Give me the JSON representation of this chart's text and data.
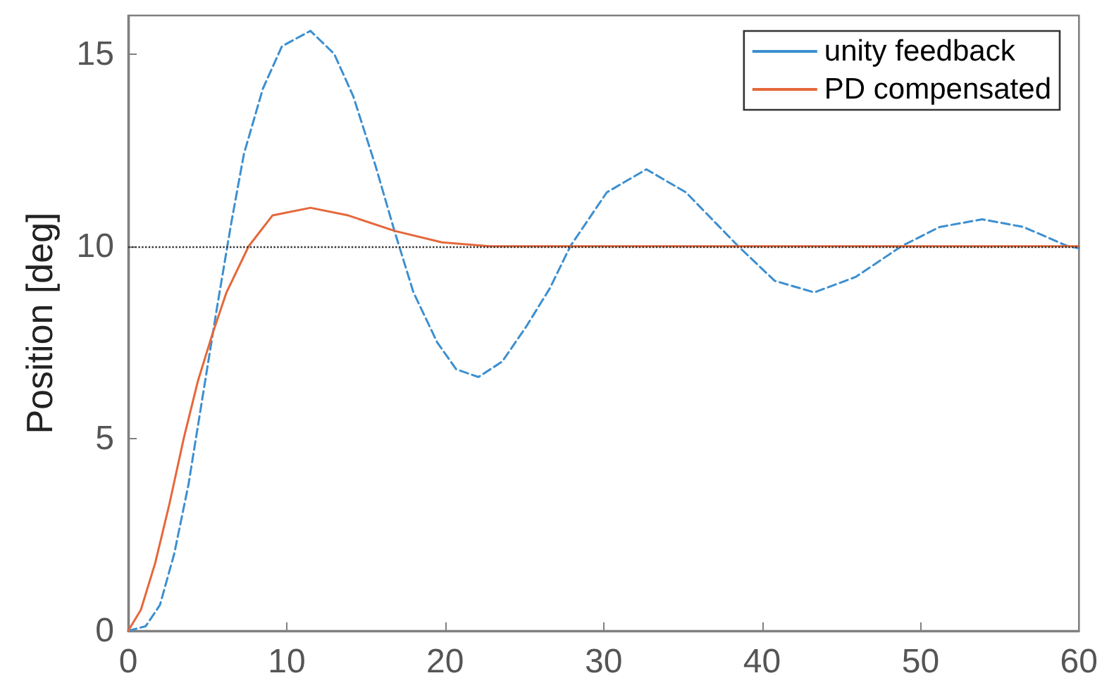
{
  "chart_data": {
    "type": "line",
    "ylabel": "Position [deg]",
    "xlim": [
      0,
      60
    ],
    "xticks": [
      0,
      10,
      20,
      30,
      40,
      50,
      60
    ],
    "ylim": [
      0,
      16
    ],
    "yticks": [
      0,
      5,
      10,
      15
    ],
    "grid": false,
    "legend": "top right",
    "marker": "none",
    "series": [
      {
        "name": "unity feedback",
        "color": "#3c8fd0",
        "line_style": "dashed",
        "x": [
          0,
          1.1,
          2,
          2.9,
          3.8,
          4.7,
          5.6,
          6.5,
          7.3,
          8.5,
          9.7,
          11.5,
          13,
          14.2,
          15.6,
          16.8,
          18,
          19.5,
          20.7,
          22.1,
          23.6,
          25.1,
          26.6,
          27.9,
          30.2,
          32.7,
          35.2,
          38.5,
          40.8,
          43.3,
          45.9,
          48.8,
          51.2,
          53.9,
          56.5,
          59.3,
          60
        ],
        "values": [
          0,
          0.12,
          0.67,
          2,
          3.8,
          6.1,
          8.4,
          10.6,
          12.4,
          14.1,
          15.2,
          15.6,
          15,
          13.9,
          12.1,
          10.4,
          8.8,
          7.5,
          6.8,
          6.6,
          7,
          7.9,
          8.9,
          10,
          11.4,
          12,
          11.4,
          10,
          9.1,
          8.8,
          9.2,
          10,
          10.5,
          10.7,
          10.5,
          10,
          9.95
        ]
      },
      {
        "name": "PD compensated",
        "color": "#e5673a",
        "line_style": "solid",
        "x": [
          0,
          0.8,
          1.7,
          2.6,
          3.5,
          4.4,
          5.3,
          6.2,
          7.6,
          9.1,
          11.5,
          13.9,
          16.8,
          19.8,
          22.8,
          30,
          40,
          50,
          60
        ],
        "values": [
          0,
          0.55,
          1.76,
          3.3,
          5,
          6.5,
          7.7,
          8.8,
          10,
          10.8,
          11,
          10.8,
          10.4,
          10.1,
          10,
          10,
          10,
          10,
          10
        ]
      }
    ],
    "ref_lines": [
      {
        "axis": "y",
        "value": 10,
        "color": "#333333",
        "line_style": "dotted"
      }
    ]
  }
}
